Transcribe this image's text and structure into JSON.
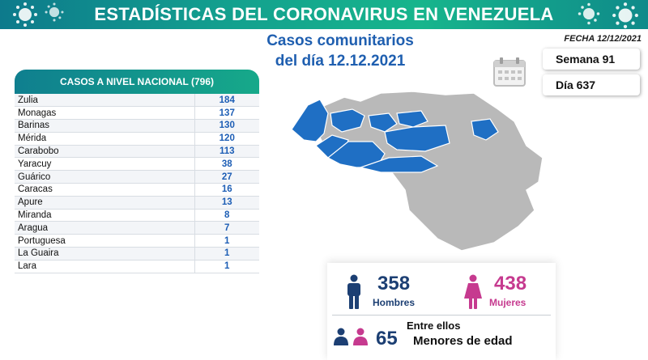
{
  "header": {
    "title": "ESTADÍSTICAS DEL CORONAVIRUS EN VENEZUELA",
    "subtitle_line1": "Casos comunitarios",
    "subtitle_line2": "del día 12.12.2021",
    "fecha": "FECHA 12/12/2021"
  },
  "info": {
    "semana": "Semana 91",
    "dia": "Día 637"
  },
  "national": {
    "title": "CASOS A NIVEL NACIONAL  (796)",
    "rows": [
      {
        "state": "Zulia",
        "cases": "184"
      },
      {
        "state": "Monagas",
        "cases": "137"
      },
      {
        "state": "Barinas",
        "cases": "130"
      },
      {
        "state": "Mérida",
        "cases": "120"
      },
      {
        "state": "Carabobo",
        "cases": "113"
      },
      {
        "state": "Yaracuy",
        "cases": "38"
      },
      {
        "state": "Guárico",
        "cases": "27"
      },
      {
        "state": "Caracas",
        "cases": "16"
      },
      {
        "state": "Apure",
        "cases": "13"
      },
      {
        "state": "Miranda",
        "cases": "8"
      },
      {
        "state": "Aragua",
        "cases": "7"
      },
      {
        "state": "Portuguesa",
        "cases": "1"
      },
      {
        "state": "La Guaira",
        "cases": "1"
      },
      {
        "state": "Lara",
        "cases": "1"
      }
    ]
  },
  "gender": {
    "men_count": "358",
    "men_label": "Hombres",
    "women_count": "438",
    "women_label": "Mujeres",
    "minors_intro": "Entre ellos",
    "minors_count": "65",
    "minors_label": "Menores de edad"
  },
  "colors": {
    "accent_blue": "#1d5eb5",
    "men": "#1c3f73",
    "women": "#c63a8f",
    "map_affected": "#1f6fc4",
    "map_other": "#b9b9b9",
    "banner": "#13a08e"
  },
  "icons": [
    "virus-icon",
    "calendar-icon",
    "man-icon",
    "woman-icon",
    "child-icon"
  ]
}
